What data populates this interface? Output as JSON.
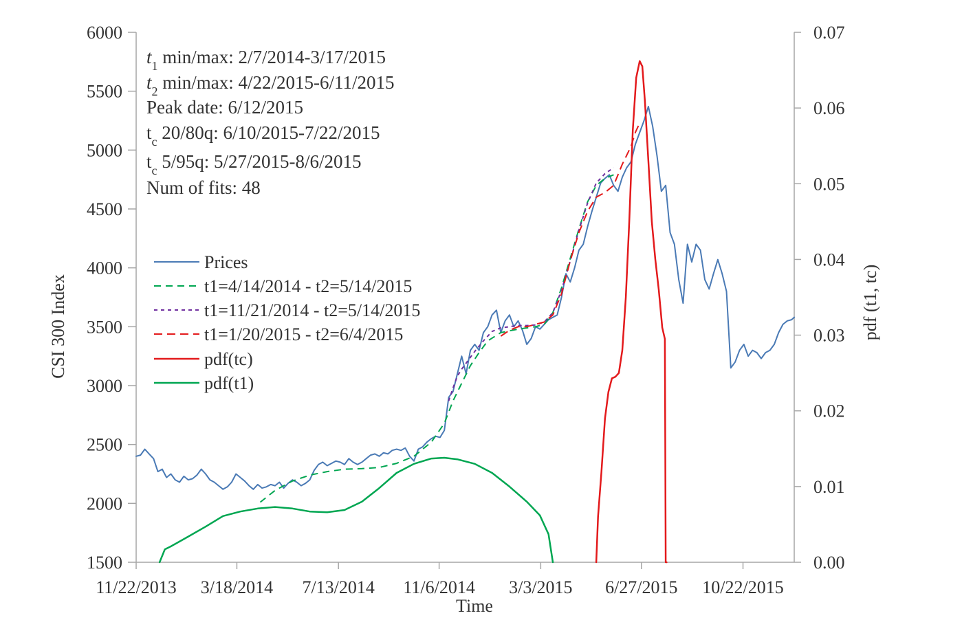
{
  "chart_data": {
    "type": "line",
    "xlabel": "Time",
    "ylabel": "CSI 300  Index",
    "y2label": "pdf (t1, tc)",
    "ylim": [
      1500,
      6000
    ],
    "y2lim": [
      0,
      0.07
    ],
    "y_ticks": [
      "1500",
      "2000",
      "2500",
      "3000",
      "3500",
      "4000",
      "4500",
      "5000",
      "5500",
      "6000"
    ],
    "y2_ticks": [
      "0.00",
      "0.01",
      "0.02",
      "0.03",
      "0.04",
      "0.05",
      "0.06",
      "0.07"
    ],
    "x_ticks": [
      "11/22/2013",
      "3/18/2014",
      "7/13/2014",
      "11/6/2014",
      "3/3/2015",
      "6/27/2015",
      "10/22/2015"
    ],
    "x_tick_days": [
      0,
      116,
      233,
      349,
      466,
      582,
      699
    ],
    "annotations": [
      {
        "main": "t",
        "sub": "1",
        "rest": " min/max: 2/7/2014-3/17/2015",
        "italic": true
      },
      {
        "main": "t",
        "sub": "2",
        "rest": " min/max: 4/22/2015-6/11/2015",
        "italic": true
      },
      {
        "main": "Peak date: 6/12/2015",
        "sub": "",
        "rest": "",
        "italic": false
      },
      {
        "main": "t",
        "sub": "c",
        "rest": " 20/80q: 6/10/2015-7/22/2015",
        "italic": false
      },
      {
        "main": "t",
        "sub": "c",
        "rest": " 5/95q: 5/27/2015-8/6/2015",
        "italic": false
      },
      {
        "main": "Num of fits: 48",
        "sub": "",
        "rest": "",
        "italic": false
      }
    ],
    "series": [
      {
        "name": "Prices",
        "axis": "left",
        "color": "#4a7ab5",
        "dash": "",
        "width": 2,
        "points": [
          [
            0,
            2400
          ],
          [
            5,
            2410
          ],
          [
            10,
            2460
          ],
          [
            15,
            2420
          ],
          [
            20,
            2380
          ],
          [
            25,
            2270
          ],
          [
            30,
            2290
          ],
          [
            35,
            2220
          ],
          [
            40,
            2250
          ],
          [
            45,
            2200
          ],
          [
            50,
            2180
          ],
          [
            55,
            2230
          ],
          [
            60,
            2200
          ],
          [
            65,
            2210
          ],
          [
            70,
            2240
          ],
          [
            75,
            2290
          ],
          [
            80,
            2250
          ],
          [
            85,
            2200
          ],
          [
            90,
            2180
          ],
          [
            95,
            2150
          ],
          [
            100,
            2120
          ],
          [
            105,
            2140
          ],
          [
            110,
            2180
          ],
          [
            115,
            2250
          ],
          [
            120,
            2220
          ],
          [
            125,
            2190
          ],
          [
            130,
            2150
          ],
          [
            135,
            2120
          ],
          [
            140,
            2160
          ],
          [
            145,
            2130
          ],
          [
            150,
            2140
          ],
          [
            155,
            2160
          ],
          [
            160,
            2150
          ],
          [
            165,
            2180
          ],
          [
            170,
            2130
          ],
          [
            175,
            2170
          ],
          [
            180,
            2200
          ],
          [
            185,
            2180
          ],
          [
            190,
            2150
          ],
          [
            195,
            2170
          ],
          [
            200,
            2200
          ],
          [
            205,
            2280
          ],
          [
            210,
            2330
          ],
          [
            215,
            2350
          ],
          [
            220,
            2320
          ],
          [
            225,
            2340
          ],
          [
            230,
            2360
          ],
          [
            235,
            2350
          ],
          [
            240,
            2330
          ],
          [
            245,
            2380
          ],
          [
            250,
            2350
          ],
          [
            255,
            2330
          ],
          [
            260,
            2350
          ],
          [
            265,
            2380
          ],
          [
            270,
            2410
          ],
          [
            275,
            2420
          ],
          [
            280,
            2400
          ],
          [
            285,
            2430
          ],
          [
            290,
            2420
          ],
          [
            295,
            2450
          ],
          [
            300,
            2460
          ],
          [
            305,
            2450
          ],
          [
            310,
            2470
          ],
          [
            315,
            2400
          ],
          [
            320,
            2360
          ],
          [
            325,
            2460
          ],
          [
            330,
            2480
          ],
          [
            335,
            2520
          ],
          [
            340,
            2550
          ],
          [
            345,
            2570
          ],
          [
            350,
            2560
          ],
          [
            355,
            2620
          ],
          [
            360,
            2900
          ],
          [
            365,
            2950
          ],
          [
            370,
            3100
          ],
          [
            375,
            3250
          ],
          [
            380,
            3100
          ],
          [
            385,
            3300
          ],
          [
            390,
            3350
          ],
          [
            395,
            3300
          ],
          [
            400,
            3450
          ],
          [
            405,
            3500
          ],
          [
            410,
            3600
          ],
          [
            415,
            3640
          ],
          [
            420,
            3450
          ],
          [
            425,
            3550
          ],
          [
            430,
            3600
          ],
          [
            435,
            3500
          ],
          [
            440,
            3550
          ],
          [
            445,
            3470
          ],
          [
            450,
            3350
          ],
          [
            455,
            3400
          ],
          [
            460,
            3500
          ],
          [
            465,
            3480
          ],
          [
            470,
            3520
          ],
          [
            475,
            3560
          ],
          [
            480,
            3580
          ],
          [
            485,
            3600
          ],
          [
            490,
            3750
          ],
          [
            495,
            3950
          ],
          [
            500,
            3880
          ],
          [
            505,
            4000
          ],
          [
            510,
            4150
          ],
          [
            515,
            4200
          ],
          [
            520,
            4350
          ],
          [
            525,
            4480
          ],
          [
            530,
            4600
          ],
          [
            535,
            4720
          ],
          [
            540,
            4760
          ],
          [
            545,
            4790
          ],
          [
            550,
            4700
          ],
          [
            555,
            4650
          ],
          [
            560,
            4770
          ],
          [
            565,
            4850
          ],
          [
            570,
            4900
          ],
          [
            575,
            5050
          ],
          [
            580,
            5150
          ],
          [
            585,
            5250
          ],
          [
            590,
            5370
          ],
          [
            595,
            5200
          ],
          [
            600,
            4950
          ],
          [
            605,
            4650
          ],
          [
            610,
            4700
          ],
          [
            615,
            4300
          ],
          [
            620,
            4200
          ],
          [
            625,
            3900
          ],
          [
            630,
            3700
          ],
          [
            635,
            4200
          ],
          [
            640,
            4050
          ],
          [
            645,
            4200
          ],
          [
            650,
            4150
          ],
          [
            655,
            3900
          ],
          [
            660,
            3820
          ],
          [
            665,
            3950
          ],
          [
            670,
            4070
          ],
          [
            675,
            3950
          ],
          [
            680,
            3800
          ],
          [
            685,
            3150
          ],
          [
            690,
            3200
          ],
          [
            695,
            3300
          ],
          [
            700,
            3350
          ],
          [
            705,
            3250
          ],
          [
            710,
            3300
          ],
          [
            715,
            3280
          ],
          [
            720,
            3230
          ],
          [
            725,
            3280
          ],
          [
            730,
            3300
          ],
          [
            735,
            3350
          ],
          [
            740,
            3450
          ],
          [
            745,
            3520
          ],
          [
            750,
            3550
          ],
          [
            755,
            3560
          ],
          [
            758,
            3580
          ]
        ]
      },
      {
        "name": "t1=4/14/2014 - t2=5/14/2015",
        "axis": "left",
        "color": "#00a651",
        "dash": "10 7",
        "width": 2,
        "points": [
          [
            143,
            2010
          ],
          [
            160,
            2110
          ],
          [
            180,
            2190
          ],
          [
            200,
            2240
          ],
          [
            220,
            2270
          ],
          [
            240,
            2290
          ],
          [
            260,
            2295
          ],
          [
            280,
            2305
          ],
          [
            300,
            2340
          ],
          [
            320,
            2400
          ],
          [
            340,
            2520
          ],
          [
            355,
            2680
          ],
          [
            365,
            2870
          ],
          [
            375,
            3020
          ],
          [
            385,
            3170
          ],
          [
            395,
            3280
          ],
          [
            405,
            3380
          ],
          [
            420,
            3450
          ],
          [
            440,
            3480
          ],
          [
            460,
            3500
          ],
          [
            470,
            3520
          ],
          [
            480,
            3620
          ],
          [
            490,
            3830
          ],
          [
            500,
            4080
          ],
          [
            510,
            4330
          ],
          [
            520,
            4560
          ],
          [
            530,
            4700
          ],
          [
            540,
            4760
          ],
          [
            550,
            4790
          ]
        ]
      },
      {
        "name": "t1=11/21/2014 - t2=5/14/2015",
        "axis": "left",
        "color": "#7030a0",
        "dash": "5 5",
        "width": 2,
        "points": [
          [
            360,
            2870
          ],
          [
            365,
            2980
          ],
          [
            370,
            3080
          ],
          [
            375,
            3140
          ],
          [
            380,
            3190
          ],
          [
            390,
            3290
          ],
          [
            400,
            3380
          ],
          [
            410,
            3460
          ],
          [
            420,
            3490
          ],
          [
            430,
            3500
          ],
          [
            440,
            3510
          ],
          [
            450,
            3510
          ],
          [
            460,
            3515
          ],
          [
            470,
            3540
          ],
          [
            480,
            3620
          ],
          [
            490,
            3810
          ],
          [
            500,
            4060
          ],
          [
            510,
            4320
          ],
          [
            520,
            4550
          ],
          [
            530,
            4720
          ],
          [
            540,
            4800
          ],
          [
            550,
            4850
          ]
        ]
      },
      {
        "name": "t1=1/20/2015 - t2=6/4/2015",
        "axis": "left",
        "color": "#e31a1c",
        "dash": "12 7",
        "width": 2,
        "points": [
          [
            420,
            3420
          ],
          [
            430,
            3470
          ],
          [
            440,
            3500
          ],
          [
            450,
            3500
          ],
          [
            460,
            3520
          ],
          [
            470,
            3540
          ],
          [
            480,
            3600
          ],
          [
            490,
            3780
          ],
          [
            500,
            4060
          ],
          [
            510,
            4300
          ],
          [
            520,
            4480
          ],
          [
            530,
            4600
          ],
          [
            540,
            4640
          ],
          [
            550,
            4700
          ],
          [
            560,
            4880
          ],
          [
            570,
            5030
          ],
          [
            575,
            5150
          ],
          [
            580,
            5230
          ]
        ]
      },
      {
        "name": "pdf(tc)",
        "axis": "right",
        "color": "#e31a1c",
        "dash": "",
        "width": 2.5,
        "points": [
          [
            530,
            0
          ],
          [
            532,
            0.006
          ],
          [
            536,
            0.012
          ],
          [
            540,
            0.019
          ],
          [
            544,
            0.0225
          ],
          [
            548,
            0.0243
          ],
          [
            552,
            0.0245
          ],
          [
            556,
            0.025
          ],
          [
            560,
            0.028
          ],
          [
            564,
            0.035
          ],
          [
            568,
            0.045
          ],
          [
            572,
            0.057
          ],
          [
            576,
            0.064
          ],
          [
            580,
            0.0662
          ],
          [
            583,
            0.0655
          ],
          [
            586,
            0.061
          ],
          [
            590,
            0.053
          ],
          [
            594,
            0.045
          ],
          [
            598,
            0.04
          ],
          [
            602,
            0.036
          ],
          [
            606,
            0.031
          ],
          [
            609,
            0.0295
          ],
          [
            610,
            0.0
          ],
          [
            611,
            0.0
          ]
        ]
      },
      {
        "name": "pdf(t1)",
        "axis": "right",
        "color": "#00a651",
        "dash": "",
        "width": 2.5,
        "points": [
          [
            27,
            0
          ],
          [
            33,
            0.0017
          ],
          [
            40,
            0.0021
          ],
          [
            60,
            0.0034
          ],
          [
            80,
            0.0047
          ],
          [
            100,
            0.0061
          ],
          [
            120,
            0.0067
          ],
          [
            140,
            0.0071
          ],
          [
            160,
            0.0073
          ],
          [
            180,
            0.0071
          ],
          [
            200,
            0.0067
          ],
          [
            220,
            0.0066
          ],
          [
            240,
            0.0069
          ],
          [
            260,
            0.008
          ],
          [
            280,
            0.0098
          ],
          [
            300,
            0.0118
          ],
          [
            320,
            0.013
          ],
          [
            340,
            0.0137
          ],
          [
            355,
            0.0138
          ],
          [
            370,
            0.0136
          ],
          [
            390,
            0.013
          ],
          [
            410,
            0.0118
          ],
          [
            430,
            0.01
          ],
          [
            450,
            0.008
          ],
          [
            465,
            0.0062
          ],
          [
            475,
            0.0037
          ],
          [
            480,
            0.0
          ]
        ]
      }
    ]
  }
}
